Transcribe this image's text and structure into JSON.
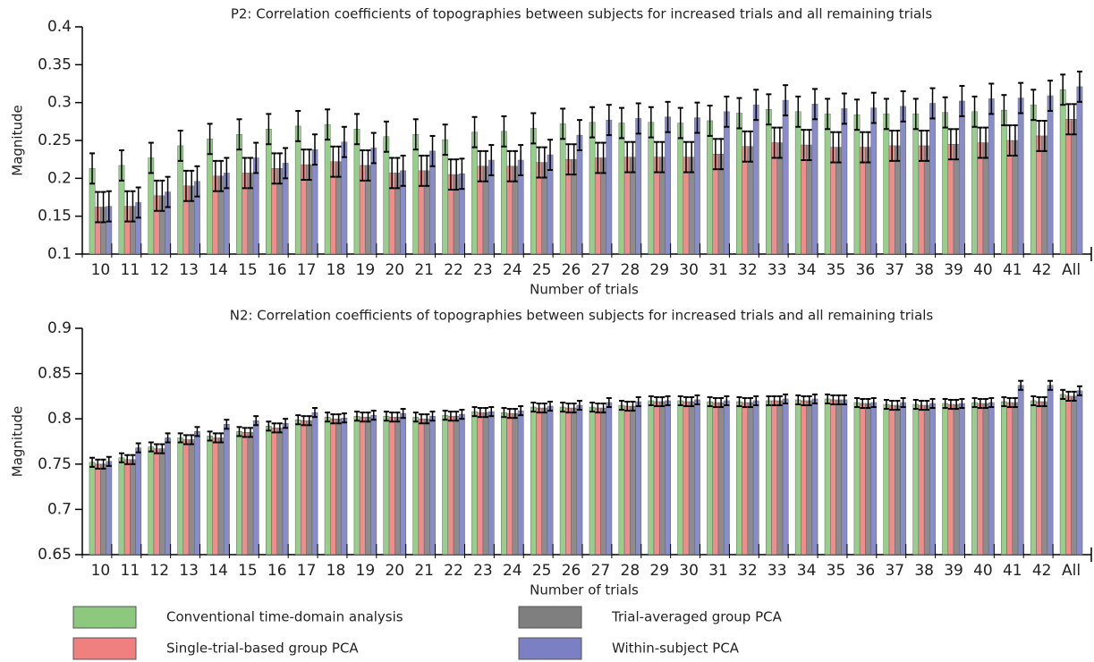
{
  "chart_data": [
    {
      "type": "bar",
      "title": "P2: Correlation coefficients of topographies between subjects for increased trials and all remaining trials",
      "x_label": "Number of trials",
      "y_label": "Magnitude",
      "categories": [
        "10",
        "11",
        "12",
        "13",
        "14",
        "15",
        "16",
        "17",
        "18",
        "19",
        "20",
        "21",
        "22",
        "23",
        "24",
        "25",
        "26",
        "27",
        "28",
        "29",
        "30",
        "31",
        "32",
        "33",
        "34",
        "35",
        "36",
        "37",
        "38",
        "39",
        "40",
        "41",
        "42",
        "All"
      ],
      "ylim": [
        0.1,
        0.4
      ],
      "yticks": [
        0.1,
        0.15,
        0.2,
        0.25,
        0.3,
        0.35,
        0.4
      ],
      "series": [
        {
          "name": "Conventional time-domain analysis",
          "color": "#8cc97e",
          "values": [
            0.213,
            0.217,
            0.227,
            0.243,
            0.252,
            0.258,
            0.265,
            0.269,
            0.271,
            0.265,
            0.255,
            0.258,
            0.251,
            0.261,
            0.262,
            0.266,
            0.272,
            0.274,
            0.273,
            0.274,
            0.273,
            0.276,
            0.286,
            0.291,
            0.288,
            0.285,
            0.284,
            0.285,
            0.285,
            0.287,
            0.288,
            0.29,
            0.297,
            0.317
          ],
          "errors": [
            0.02,
            0.02,
            0.02,
            0.02,
            0.02,
            0.02,
            0.02,
            0.02,
            0.02,
            0.02,
            0.02,
            0.02,
            0.02,
            0.02,
            0.02,
            0.02,
            0.02,
            0.02,
            0.02,
            0.02,
            0.02,
            0.02,
            0.02,
            0.02,
            0.02,
            0.02,
            0.02,
            0.02,
            0.02,
            0.02,
            0.02,
            0.02,
            0.02,
            0.02
          ]
        },
        {
          "name": "Single-trial-based group PCA",
          "color": "#f08080",
          "values": [
            0.162,
            0.163,
            0.177,
            0.19,
            0.203,
            0.207,
            0.213,
            0.218,
            0.222,
            0.217,
            0.207,
            0.21,
            0.205,
            0.216,
            0.216,
            0.221,
            0.225,
            0.227,
            0.228,
            0.228,
            0.228,
            0.232,
            0.242,
            0.247,
            0.244,
            0.241,
            0.241,
            0.243,
            0.243,
            0.245,
            0.247,
            0.25,
            0.256,
            0.278
          ],
          "errors": [
            0.02,
            0.02,
            0.02,
            0.02,
            0.02,
            0.02,
            0.02,
            0.02,
            0.02,
            0.02,
            0.02,
            0.02,
            0.02,
            0.02,
            0.02,
            0.02,
            0.02,
            0.02,
            0.02,
            0.02,
            0.02,
            0.02,
            0.02,
            0.02,
            0.02,
            0.02,
            0.02,
            0.02,
            0.02,
            0.02,
            0.02,
            0.02,
            0.02,
            0.02
          ]
        },
        {
          "name": "Trial-averaged group PCA",
          "color": "#7f7f7f",
          "values": [
            0.162,
            0.163,
            0.177,
            0.19,
            0.203,
            0.207,
            0.213,
            0.218,
            0.222,
            0.217,
            0.207,
            0.21,
            0.205,
            0.216,
            0.216,
            0.221,
            0.225,
            0.227,
            0.228,
            0.228,
            0.228,
            0.232,
            0.242,
            0.247,
            0.244,
            0.241,
            0.241,
            0.243,
            0.243,
            0.245,
            0.247,
            0.25,
            0.256,
            0.278
          ],
          "errors": [
            0.02,
            0.02,
            0.02,
            0.02,
            0.02,
            0.02,
            0.02,
            0.02,
            0.02,
            0.02,
            0.02,
            0.02,
            0.02,
            0.02,
            0.02,
            0.02,
            0.02,
            0.02,
            0.02,
            0.02,
            0.02,
            0.02,
            0.02,
            0.02,
            0.02,
            0.02,
            0.02,
            0.02,
            0.02,
            0.02,
            0.02,
            0.02,
            0.02,
            0.02
          ]
        },
        {
          "name": "Within-subject PCA",
          "color": "#7b7fc4",
          "values": [
            0.163,
            0.168,
            0.182,
            0.196,
            0.207,
            0.227,
            0.22,
            0.238,
            0.248,
            0.24,
            0.21,
            0.236,
            0.206,
            0.224,
            0.224,
            0.231,
            0.257,
            0.277,
            0.279,
            0.281,
            0.28,
            0.288,
            0.297,
            0.303,
            0.298,
            0.292,
            0.293,
            0.295,
            0.299,
            0.302,
            0.305,
            0.306,
            0.309,
            0.321
          ],
          "errors": [
            0.02,
            0.02,
            0.02,
            0.02,
            0.02,
            0.02,
            0.02,
            0.02,
            0.02,
            0.02,
            0.02,
            0.02,
            0.02,
            0.02,
            0.02,
            0.02,
            0.02,
            0.02,
            0.02,
            0.02,
            0.02,
            0.02,
            0.02,
            0.02,
            0.02,
            0.02,
            0.02,
            0.02,
            0.02,
            0.02,
            0.02,
            0.02,
            0.02,
            0.02
          ]
        }
      ]
    },
    {
      "type": "bar",
      "title": "N2: Correlation coefficients of topographies between subjects for increased trials and all remaining trials",
      "x_label": "Number of trials",
      "y_label": "Magnitude",
      "categories": [
        "10",
        "11",
        "12",
        "13",
        "14",
        "15",
        "16",
        "17",
        "18",
        "19",
        "20",
        "21",
        "22",
        "23",
        "24",
        "25",
        "26",
        "27",
        "28",
        "29",
        "30",
        "31",
        "32",
        "33",
        "34",
        "35",
        "36",
        "37",
        "38",
        "39",
        "40",
        "41",
        "42",
        "All"
      ],
      "ylim": [
        0.65,
        0.9
      ],
      "yticks": [
        0.65,
        0.7,
        0.75,
        0.8,
        0.85,
        0.9
      ],
      "series": [
        {
          "color": "#8cc97e",
          "values": [
            0.752,
            0.757,
            0.769,
            0.779,
            0.781,
            0.786,
            0.792,
            0.799,
            0.802,
            0.803,
            0.803,
            0.802,
            0.804,
            0.808,
            0.807,
            0.813,
            0.813,
            0.813,
            0.815,
            0.82,
            0.82,
            0.819,
            0.819,
            0.82,
            0.821,
            0.822,
            0.818,
            0.816,
            0.816,
            0.817,
            0.818,
            0.819,
            0.82,
            0.827
          ],
          "errors": [
            0.005,
            0.005,
            0.005,
            0.005,
            0.005,
            0.005,
            0.005,
            0.005,
            0.005,
            0.005,
            0.005,
            0.005,
            0.005,
            0.005,
            0.005,
            0.005,
            0.005,
            0.005,
            0.005,
            0.005,
            0.005,
            0.005,
            0.005,
            0.005,
            0.005,
            0.005,
            0.005,
            0.005,
            0.005,
            0.005,
            0.005,
            0.005,
            0.005,
            0.005
          ]
        },
        {
          "color": "#f08080",
          "values": [
            0.75,
            0.755,
            0.767,
            0.777,
            0.779,
            0.785,
            0.79,
            0.798,
            0.8,
            0.802,
            0.802,
            0.8,
            0.803,
            0.807,
            0.806,
            0.812,
            0.812,
            0.812,
            0.814,
            0.819,
            0.819,
            0.818,
            0.818,
            0.82,
            0.82,
            0.821,
            0.817,
            0.815,
            0.815,
            0.816,
            0.817,
            0.818,
            0.819,
            0.825
          ],
          "errors": [
            0.005,
            0.005,
            0.005,
            0.005,
            0.005,
            0.005,
            0.005,
            0.005,
            0.005,
            0.005,
            0.005,
            0.005,
            0.005,
            0.005,
            0.005,
            0.005,
            0.005,
            0.005,
            0.005,
            0.005,
            0.005,
            0.005,
            0.005,
            0.005,
            0.005,
            0.005,
            0.005,
            0.005,
            0.005,
            0.005,
            0.005,
            0.005,
            0.005,
            0.005
          ]
        },
        {
          "color": "#7f7f7f",
          "values": [
            0.75,
            0.755,
            0.767,
            0.777,
            0.779,
            0.785,
            0.79,
            0.798,
            0.8,
            0.802,
            0.802,
            0.8,
            0.803,
            0.807,
            0.806,
            0.812,
            0.812,
            0.812,
            0.814,
            0.819,
            0.819,
            0.818,
            0.818,
            0.82,
            0.82,
            0.821,
            0.817,
            0.815,
            0.815,
            0.816,
            0.817,
            0.818,
            0.819,
            0.825
          ],
          "errors": [
            0.005,
            0.005,
            0.005,
            0.005,
            0.005,
            0.005,
            0.005,
            0.005,
            0.005,
            0.005,
            0.005,
            0.005,
            0.005,
            0.005,
            0.005,
            0.005,
            0.005,
            0.005,
            0.005,
            0.005,
            0.005,
            0.005,
            0.005,
            0.005,
            0.005,
            0.005,
            0.005,
            0.005,
            0.005,
            0.005,
            0.005,
            0.005,
            0.005,
            0.005
          ]
        },
        {
          "color": "#7b7fc4",
          "values": [
            0.753,
            0.768,
            0.779,
            0.786,
            0.794,
            0.798,
            0.795,
            0.807,
            0.801,
            0.804,
            0.806,
            0.803,
            0.805,
            0.808,
            0.809,
            0.814,
            0.815,
            0.818,
            0.819,
            0.82,
            0.821,
            0.82,
            0.82,
            0.822,
            0.822,
            0.821,
            0.818,
            0.818,
            0.817,
            0.817,
            0.818,
            0.837,
            0.837,
            0.831
          ],
          "errors": [
            0.005,
            0.005,
            0.005,
            0.005,
            0.005,
            0.005,
            0.005,
            0.005,
            0.005,
            0.005,
            0.005,
            0.005,
            0.005,
            0.005,
            0.005,
            0.005,
            0.005,
            0.005,
            0.005,
            0.005,
            0.005,
            0.005,
            0.005,
            0.005,
            0.005,
            0.005,
            0.005,
            0.005,
            0.005,
            0.005,
            0.005,
            0.005,
            0.005,
            0.005
          ]
        }
      ]
    }
  ]
}
